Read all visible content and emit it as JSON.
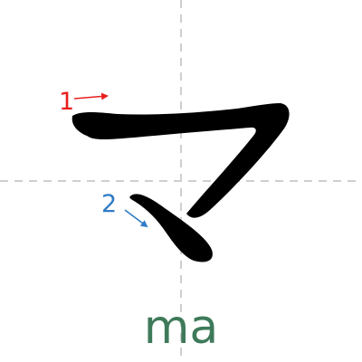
{
  "character": "マ",
  "romaji": "ma",
  "strokes": [
    {
      "number": "1",
      "color": "#e8201e"
    },
    {
      "number": "2",
      "color": "#2f7bc6"
    }
  ],
  "colors": {
    "guide": "#cfcfcf",
    "stroke_fill": "#000000",
    "romaji": "#3e7a5a"
  },
  "icons": {
    "stroke_1_arrow": "arrow-right-icon",
    "stroke_2_arrow": "arrow-down-right-icon"
  }
}
